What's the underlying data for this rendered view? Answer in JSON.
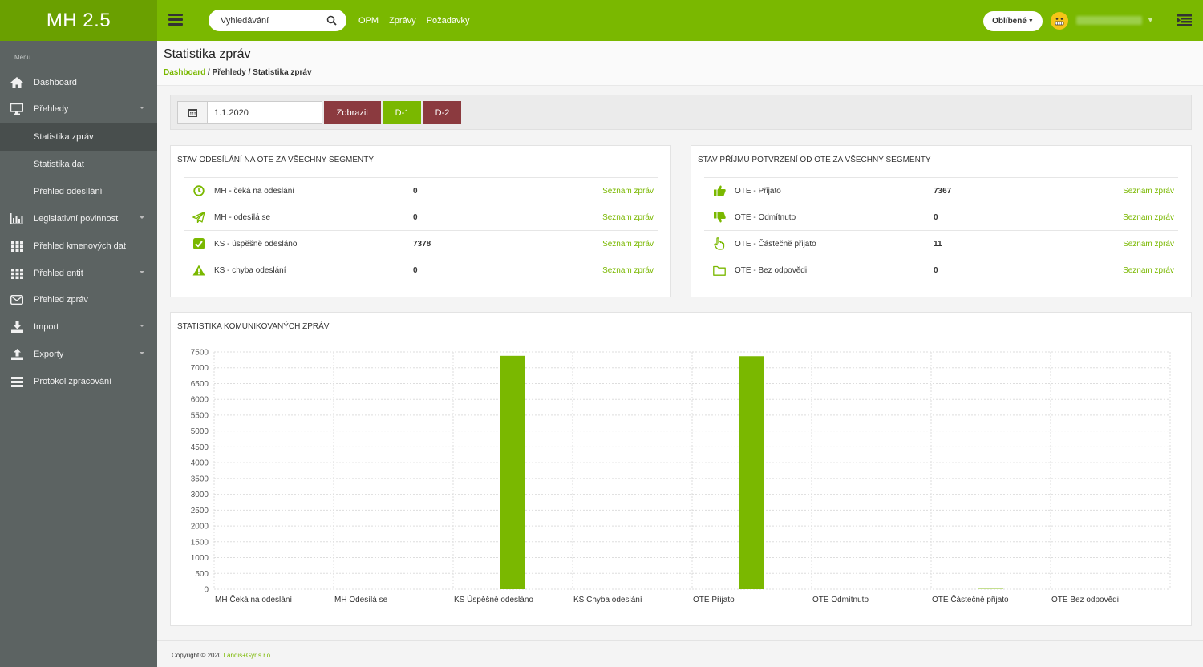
{
  "app": {
    "brand": "MH 2.5"
  },
  "header": {
    "search_placeholder": "Vyhledávání",
    "nav": [
      "OPM",
      "Zprávy",
      "Požadavky"
    ],
    "favorites": "Oblíbené"
  },
  "sidebar": {
    "menu_title": "Menu",
    "items": [
      {
        "label": "Dashboard",
        "icon": "home-icon"
      },
      {
        "label": "Přehledy",
        "icon": "monitor-icon",
        "caret": true
      },
      {
        "label": "Legislativní povinnost",
        "icon": "bar-chart-icon",
        "caret": true
      },
      {
        "label": "Přehled kmenových dat",
        "icon": "grid-icon"
      },
      {
        "label": "Přehled entit",
        "icon": "grid-icon",
        "caret": true
      },
      {
        "label": "Přehled zpráv",
        "icon": "envelope-icon"
      },
      {
        "label": "Import",
        "icon": "download-icon",
        "caret": true
      },
      {
        "label": "Exporty",
        "icon": "upload-icon",
        "caret": true
      },
      {
        "label": "Protokol zpracování",
        "icon": "list-icon"
      }
    ],
    "subitems": [
      "Statistika zpráv",
      "Statistika dat",
      "Přehled odesílání"
    ]
  },
  "page": {
    "title": "Statistika zpráv",
    "breadcrumb": [
      "Dashboard",
      "Přehledy",
      "Statistika zpráv"
    ]
  },
  "filter": {
    "date": "1.1.2020",
    "show": "Zobrazit",
    "d1": "D-1",
    "d2": "D-2"
  },
  "panel_send": {
    "title": "STAV ODESÍLÁNÍ NA OTE ZA VŠECHNY SEGMENTY",
    "rows": [
      {
        "icon": "clock-icon",
        "label": "MH - čeká na odeslání",
        "value": "0",
        "link": "Seznam zpráv"
      },
      {
        "icon": "paper-plane-icon",
        "label": "MH - odesílá se",
        "value": "0",
        "link": "Seznam zpráv"
      },
      {
        "icon": "check-square-icon",
        "label": "KS - úspěšně odesláno",
        "value": "7378",
        "link": "Seznam zpráv"
      },
      {
        "icon": "warning-icon",
        "label": "KS - chyba odeslání",
        "value": "0",
        "link": "Seznam zpráv"
      }
    ]
  },
  "panel_receive": {
    "title": "STAV PŘÍJMU POTVRZENÍ OD OTE ZA VŠECHNY SEGMENTY",
    "rows": [
      {
        "icon": "thumbs-up-icon",
        "label": "OTE - Přijato",
        "value": "7367",
        "link": "Seznam zpráv"
      },
      {
        "icon": "thumbs-down-icon",
        "label": "OTE - Odmítnuto",
        "value": "0",
        "link": "Seznam zpráv"
      },
      {
        "icon": "hand-pointer-icon",
        "label": "OTE - Částečně přijato",
        "value": "11",
        "link": "Seznam zpráv"
      },
      {
        "icon": "folder-icon",
        "label": "OTE - Bez odpovědi",
        "value": "0",
        "link": "Seznam zpráv"
      }
    ]
  },
  "chart_panel": {
    "title": "STATISTIKA KOMUNIKOVANÝCH ZPRÁV"
  },
  "chart_data": {
    "type": "bar",
    "categories": [
      "MH Čeká na odeslání",
      "MH Odesílá se",
      "KS Úspěšně odesláno",
      "KS Chyba odeslání",
      "OTE Přijato",
      "OTE Odmítnuto",
      "OTE Částečně přijato",
      "OTE Bez odpovědi"
    ],
    "values": [
      0,
      0,
      7378,
      0,
      7367,
      0,
      11,
      0
    ],
    "yticks": [
      "0",
      "500",
      "1000",
      "1500",
      "2000",
      "2500",
      "3000",
      "3500",
      "4000",
      "4500",
      "5000",
      "5500",
      "6000",
      "6500",
      "7000",
      "7500"
    ],
    "ylim": [
      0,
      7500
    ],
    "grid": true,
    "bar_color": "#7ab800"
  },
  "footer": {
    "text": "Copyright © 2020 ",
    "company": "Landis+Gyr s.r.o."
  },
  "colors": {
    "accent": "#7ab800",
    "danger": "#8b3a3f",
    "sidebar": "#5c6362"
  }
}
